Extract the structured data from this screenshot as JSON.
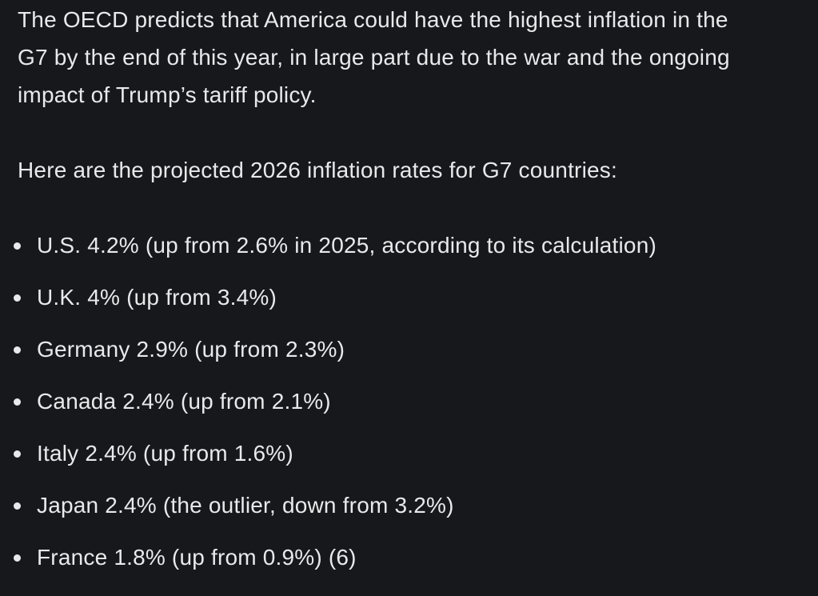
{
  "post": {
    "paragraph1_lines": [
      "The OECD predicts that America could have the highest inflation in the",
      "G7 by the end of this year, in large part due to the war and the ongoing",
      "impact of Trump’s tariff policy."
    ],
    "paragraph2": "Here are the projected 2026 inflation rates for G7 countries:",
    "bullet_icon": "bullet-dot",
    "items": [
      "U.S. 4.2% (up from 2.6% in 2025, according to its calculation)",
      "U.K. 4% (up from 3.4%)",
      "Germany 2.9% (up from 2.3%)",
      "Canada 2.4% (up from 2.1%)",
      "Italy 2.4% (up from 1.6%)",
      "Japan 2.4% (the outlier, down from 3.2%)",
      "France 1.8% (up from 0.9%) (6)"
    ],
    "colors": {
      "background": "#16181c",
      "text": "#e7e9ea"
    }
  }
}
